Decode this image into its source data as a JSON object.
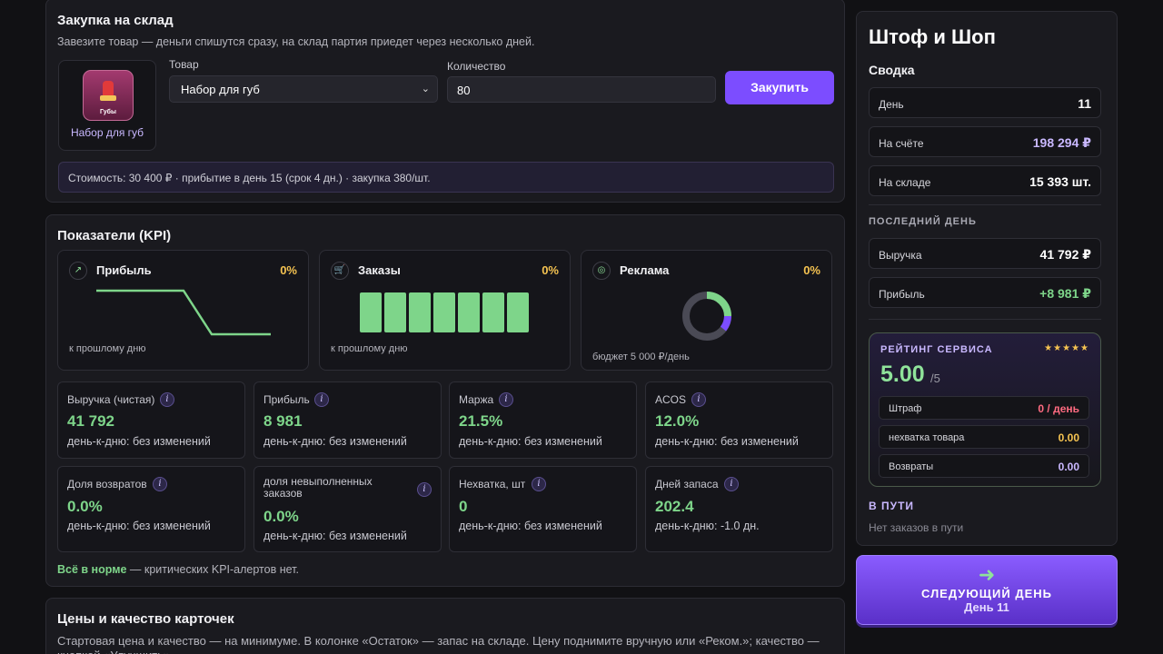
{
  "purchase": {
    "title": "Закупка на склад",
    "subtitle": "Завезите товар — деньги спишутся сразу, на склад партия приедет через несколько дней.",
    "product_image_label": "Губы",
    "product_name": "Набор для губ",
    "product_label": "Товар",
    "product_selected": "Набор для губ",
    "quantity_label": "Количество",
    "quantity_value": "80",
    "buy_label": "Закупить",
    "cost_summary": "Стоимость: 30 400 ₽ · прибытие в день 15 (срок 4 дн.) · закупка 380/шт."
  },
  "kpi": {
    "title": "Показатели (KPI)",
    "mini": [
      {
        "title": "Прибыль",
        "pct": "0%",
        "note": "к прошлому дню",
        "icon": "trend-icon"
      },
      {
        "title": "Заказы",
        "pct": "0%",
        "note": "к прошлому дню",
        "icon": "cart-icon"
      },
      {
        "title": "Реклама",
        "pct": "0%",
        "note": "бюджет 5 000 ₽/день",
        "icon": "target-icon"
      }
    ],
    "stats": [
      {
        "label": "Выручка (чистая)",
        "value": "41 792",
        "change": "день-к-дню: без изменений"
      },
      {
        "label": "Прибыль",
        "value": "8 981",
        "change": "день-к-дню: без изменений"
      },
      {
        "label": "Маржа",
        "value": "21.5%",
        "change": "день-к-дню: без изменений"
      },
      {
        "label": "ACOS",
        "value": "12.0%",
        "change": "день-к-дню: без изменений"
      },
      {
        "label": "Доля возвратов",
        "value": "0.0%",
        "change": "день-к-дню: без изменений"
      },
      {
        "label": "доля невыполненных заказов",
        "value": "0.0%",
        "change": "день-к-дню: без изменений"
      },
      {
        "label": "Нехватка, шт",
        "value": "0",
        "change": "день-к-дню: без изменений"
      },
      {
        "label": "Дней запаса",
        "value": "202.4",
        "change": "день-к-дню: -1.0 дн."
      }
    ],
    "ok_bold": "Всё в норме",
    "ok_rest": " — критических KPI-алертов нет."
  },
  "prices": {
    "title": "Цены и качество карточек",
    "text": "Стартовая цена и качество — на минимуме. В колонке «Остаток» — запас на складе. Цену поднимите вручную или «Реком.»; качество — кнопкой «Улучшить»."
  },
  "side": {
    "shop_name": "Штоф и Шоп",
    "summary_title": "Сводка",
    "rows": [
      {
        "k": "День",
        "v": "11"
      },
      {
        "k": "На счёте",
        "v": "198 294 ₽"
      },
      {
        "k": "На складе",
        "v": "15 393 шт."
      }
    ],
    "last_day_caption": "ПОСЛЕДНИЙ ДЕНЬ",
    "last_day_rows": [
      {
        "k": "Выручка",
        "v": "41 792 ₽"
      },
      {
        "k": "Прибыль",
        "v": "+8 981 ₽"
      }
    ],
    "rating": {
      "title": "РЕЙТИНГ СЕРВИСА",
      "stars": "★★★★★",
      "value": "5.00",
      "of": "/5",
      "rows": [
        {
          "k": "Штраф",
          "v": "0 / день"
        },
        {
          "k": "нехватка товара",
          "v": "0.00"
        },
        {
          "k": "Возвраты",
          "v": "0.00"
        }
      ]
    },
    "transit_title": "В ПУТИ",
    "transit_text": "Нет заказов в пути"
  },
  "next_day": {
    "arrow": "➜",
    "label": "СЛЕДУЮЩИЙ ДЕНЬ",
    "day": "День 11"
  },
  "colors": {
    "accent": "#7c4dff",
    "positive": "#7ed58a",
    "warn": "#f5c351",
    "money": "#c9b8ff",
    "penalty": "#ff6b81"
  }
}
